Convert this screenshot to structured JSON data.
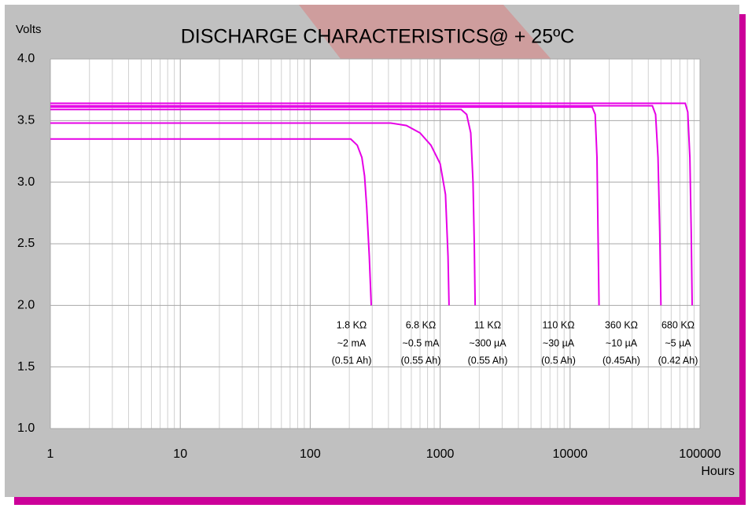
{
  "chart_data": {
    "type": "line",
    "title": "DISCHARGE CHARACTERISTICS@ +   25ºC",
    "y_label": "Volts",
    "x_label": "Hours",
    "xscale": "log",
    "xlim": [
      1,
      100000
    ],
    "ylim": [
      1.0,
      4.0
    ],
    "xticks": [
      1,
      10,
      100,
      1000,
      10000,
      100000
    ],
    "yticks": [
      {
        "value": 1.0,
        "label": "1.0"
      },
      {
        "value": 1.5,
        "label": "1.5"
      },
      {
        "value": 2.0,
        "label": "2.0"
      },
      {
        "value": 2.5,
        "label": "2.5"
      },
      {
        "value": 3.0,
        "label": "3.0"
      },
      {
        "value": 3.5,
        "label": "3.5"
      },
      {
        "value": 4.0,
        "label": "4.0"
      }
    ],
    "grid": true,
    "minor_grid": true,
    "series": [
      {
        "name": "1.8 KΩ",
        "annotations": [
          "~2 mA",
          "(0.51 Ah)"
        ],
        "color": "#e600e6",
        "x": [
          1,
          205,
          230,
          250,
          262,
          272,
          285,
          295
        ],
        "values": [
          3.35,
          3.35,
          3.3,
          3.2,
          3.05,
          2.8,
          2.4,
          2.0
        ]
      },
      {
        "name": "6.8 KΩ",
        "annotations": [
          "~0.5 mA",
          "(0.55 Ah)"
        ],
        "color": "#e600e6",
        "x": [
          1,
          417,
          550,
          700,
          850,
          1000,
          1100,
          1150,
          1170
        ],
        "values": [
          3.48,
          3.48,
          3.46,
          3.4,
          3.3,
          3.15,
          2.9,
          2.4,
          2.0
        ]
      },
      {
        "name": "11 KΩ",
        "annotations": [
          "~300 µA",
          "(0.55 Ah)"
        ],
        "color": "#e600e6",
        "x": [
          1,
          1450,
          1600,
          1720,
          1790,
          1830,
          1860
        ],
        "values": [
          3.59,
          3.59,
          3.55,
          3.4,
          3.0,
          2.5,
          2.0
        ]
      },
      {
        "name": "110 KΩ",
        "annotations": [
          "~30 µA",
          "(0.5 Ah)"
        ],
        "color": "#e600e6",
        "x": [
          1,
          14800,
          15600,
          16100,
          16400,
          16700
        ],
        "values": [
          3.61,
          3.61,
          3.55,
          3.2,
          2.6,
          2.0
        ]
      },
      {
        "name": "360 KΩ",
        "annotations": [
          "~10 µA",
          "(0.45Ah)"
        ],
        "color": "#e600e6",
        "x": [
          1,
          43000,
          45500,
          47500,
          49000,
          50000
        ],
        "values": [
          3.62,
          3.62,
          3.55,
          3.2,
          2.6,
          2.0
        ]
      },
      {
        "name": "680 KΩ",
        "annotations": [
          "~5 µA",
          "(0.42 Ah)"
        ],
        "color": "#e600e6",
        "x": [
          1,
          77000,
          80500,
          83500,
          85500,
          87000
        ],
        "values": [
          3.64,
          3.64,
          3.57,
          3.2,
          2.6,
          2.0
        ]
      }
    ]
  }
}
